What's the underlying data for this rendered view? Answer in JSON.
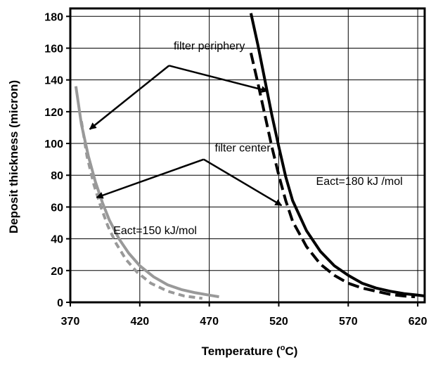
{
  "chart_data": {
    "type": "line",
    "xlabel": "Temperature",
    "xlabel_unit_prefix": "(",
    "xlabel_unit_sup": "o",
    "xlabel_unit_suffix": "C)",
    "ylabel": "Deposit thickness (micron)",
    "xlim": [
      370,
      625
    ],
    "ylim": [
      0,
      185
    ],
    "xticks": [
      370,
      420,
      470,
      520,
      570,
      620
    ],
    "yticks": [
      0,
      20,
      40,
      60,
      80,
      100,
      120,
      140,
      160,
      180
    ],
    "grid": true,
    "series": [
      {
        "color": "#999999",
        "style": "solid",
        "x": [
          374,
          378,
          383,
          388,
          393,
          398,
          405,
          412,
          420,
          430,
          440,
          450,
          460,
          470,
          477
        ],
        "y": [
          136,
          112,
          92,
          76,
          63,
          52,
          40,
          31,
          23,
          16,
          11,
          8,
          6,
          4.5,
          3.5
        ]
      },
      {
        "color": "#999999",
        "style": "dashed",
        "x": [
          378,
          382,
          387,
          392,
          397,
          403,
          410,
          418,
          428,
          440,
          452,
          465
        ],
        "y": [
          114,
          92,
          74,
          60,
          48,
          37,
          27,
          19,
          12,
          7,
          4,
          2.5
        ]
      },
      {
        "color": "#000000",
        "style": "solid",
        "x": [
          500,
          505,
          510,
          515,
          520,
          525,
          530,
          540,
          550,
          560,
          570,
          580,
          590,
          600,
          610,
          620,
          625
        ],
        "y": [
          182,
          162,
          140,
          118,
          98,
          79,
          64,
          45,
          32,
          23,
          17,
          12,
          9,
          7,
          5.5,
          4.5,
          4
        ]
      },
      {
        "color": "#000000",
        "style": "dashed",
        "x": [
          500,
          505,
          510,
          515,
          520,
          525,
          530,
          540,
          550,
          560,
          570,
          580,
          590,
          600,
          610,
          618
        ],
        "y": [
          157,
          138,
          118,
          98,
          80,
          64,
          51,
          35,
          24,
          17,
          12,
          9,
          7,
          5,
          4,
          3.5
        ]
      }
    ],
    "annotations": [
      {
        "text": "filter periphery",
        "x": 470,
        "y": 159
      },
      {
        "text": "filter center",
        "x": 494,
        "y": 95
      },
      {
        "text": "Eact=180 kJ /mol",
        "x": 578,
        "y": 74
      },
      {
        "text": "Eact=150 kJ/mol",
        "x": 431,
        "y": 43
      }
    ],
    "arrows": [
      {
        "group": "filter periphery",
        "from": [
          441,
          149
        ],
        "to": [
          384,
          109
        ]
      },
      {
        "group": "filter periphery",
        "from": [
          441,
          149
        ],
        "to": [
          512,
          133
        ]
      },
      {
        "group": "filter center",
        "from": [
          466,
          90
        ],
        "to": [
          389,
          66
        ]
      },
      {
        "group": "filter center",
        "from": [
          466,
          90
        ],
        "to": [
          522,
          61
        ]
      }
    ]
  }
}
